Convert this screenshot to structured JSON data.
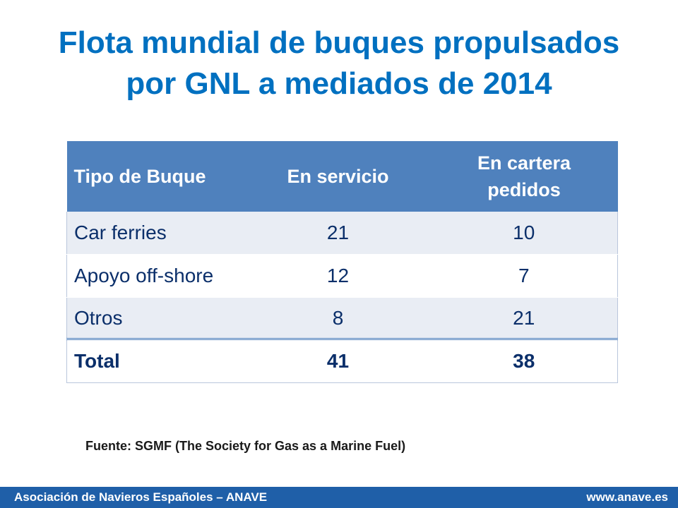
{
  "title": {
    "line1": "Flota mundial de buques propulsados",
    "line2": "por GNL a mediados de 2014"
  },
  "table": {
    "headers": {
      "type": "Tipo de Buque",
      "in_service": "En servicio",
      "on_order_line1": "En cartera",
      "on_order_line2": "pedidos"
    },
    "rows": [
      {
        "type": "Car ferries",
        "in_service": "21",
        "on_order": "10"
      },
      {
        "type": "Apoyo off-shore",
        "in_service": "12",
        "on_order": "7"
      },
      {
        "type": "Otros",
        "in_service": "8",
        "on_order": "21"
      }
    ],
    "total": {
      "label": "Total",
      "in_service": "41",
      "on_order": "38"
    }
  },
  "source": "Fuente: SGMF (The Society for Gas as a Marine Fuel)",
  "footer": {
    "organization": "Asociación de Navieros Españoles – ANAVE",
    "website": "www.anave.es"
  },
  "colors": {
    "title": "#0070c0",
    "header_bg": "#4f81bd",
    "row_band": "#e9edf4",
    "footer_bg": "#1f5fa8"
  }
}
